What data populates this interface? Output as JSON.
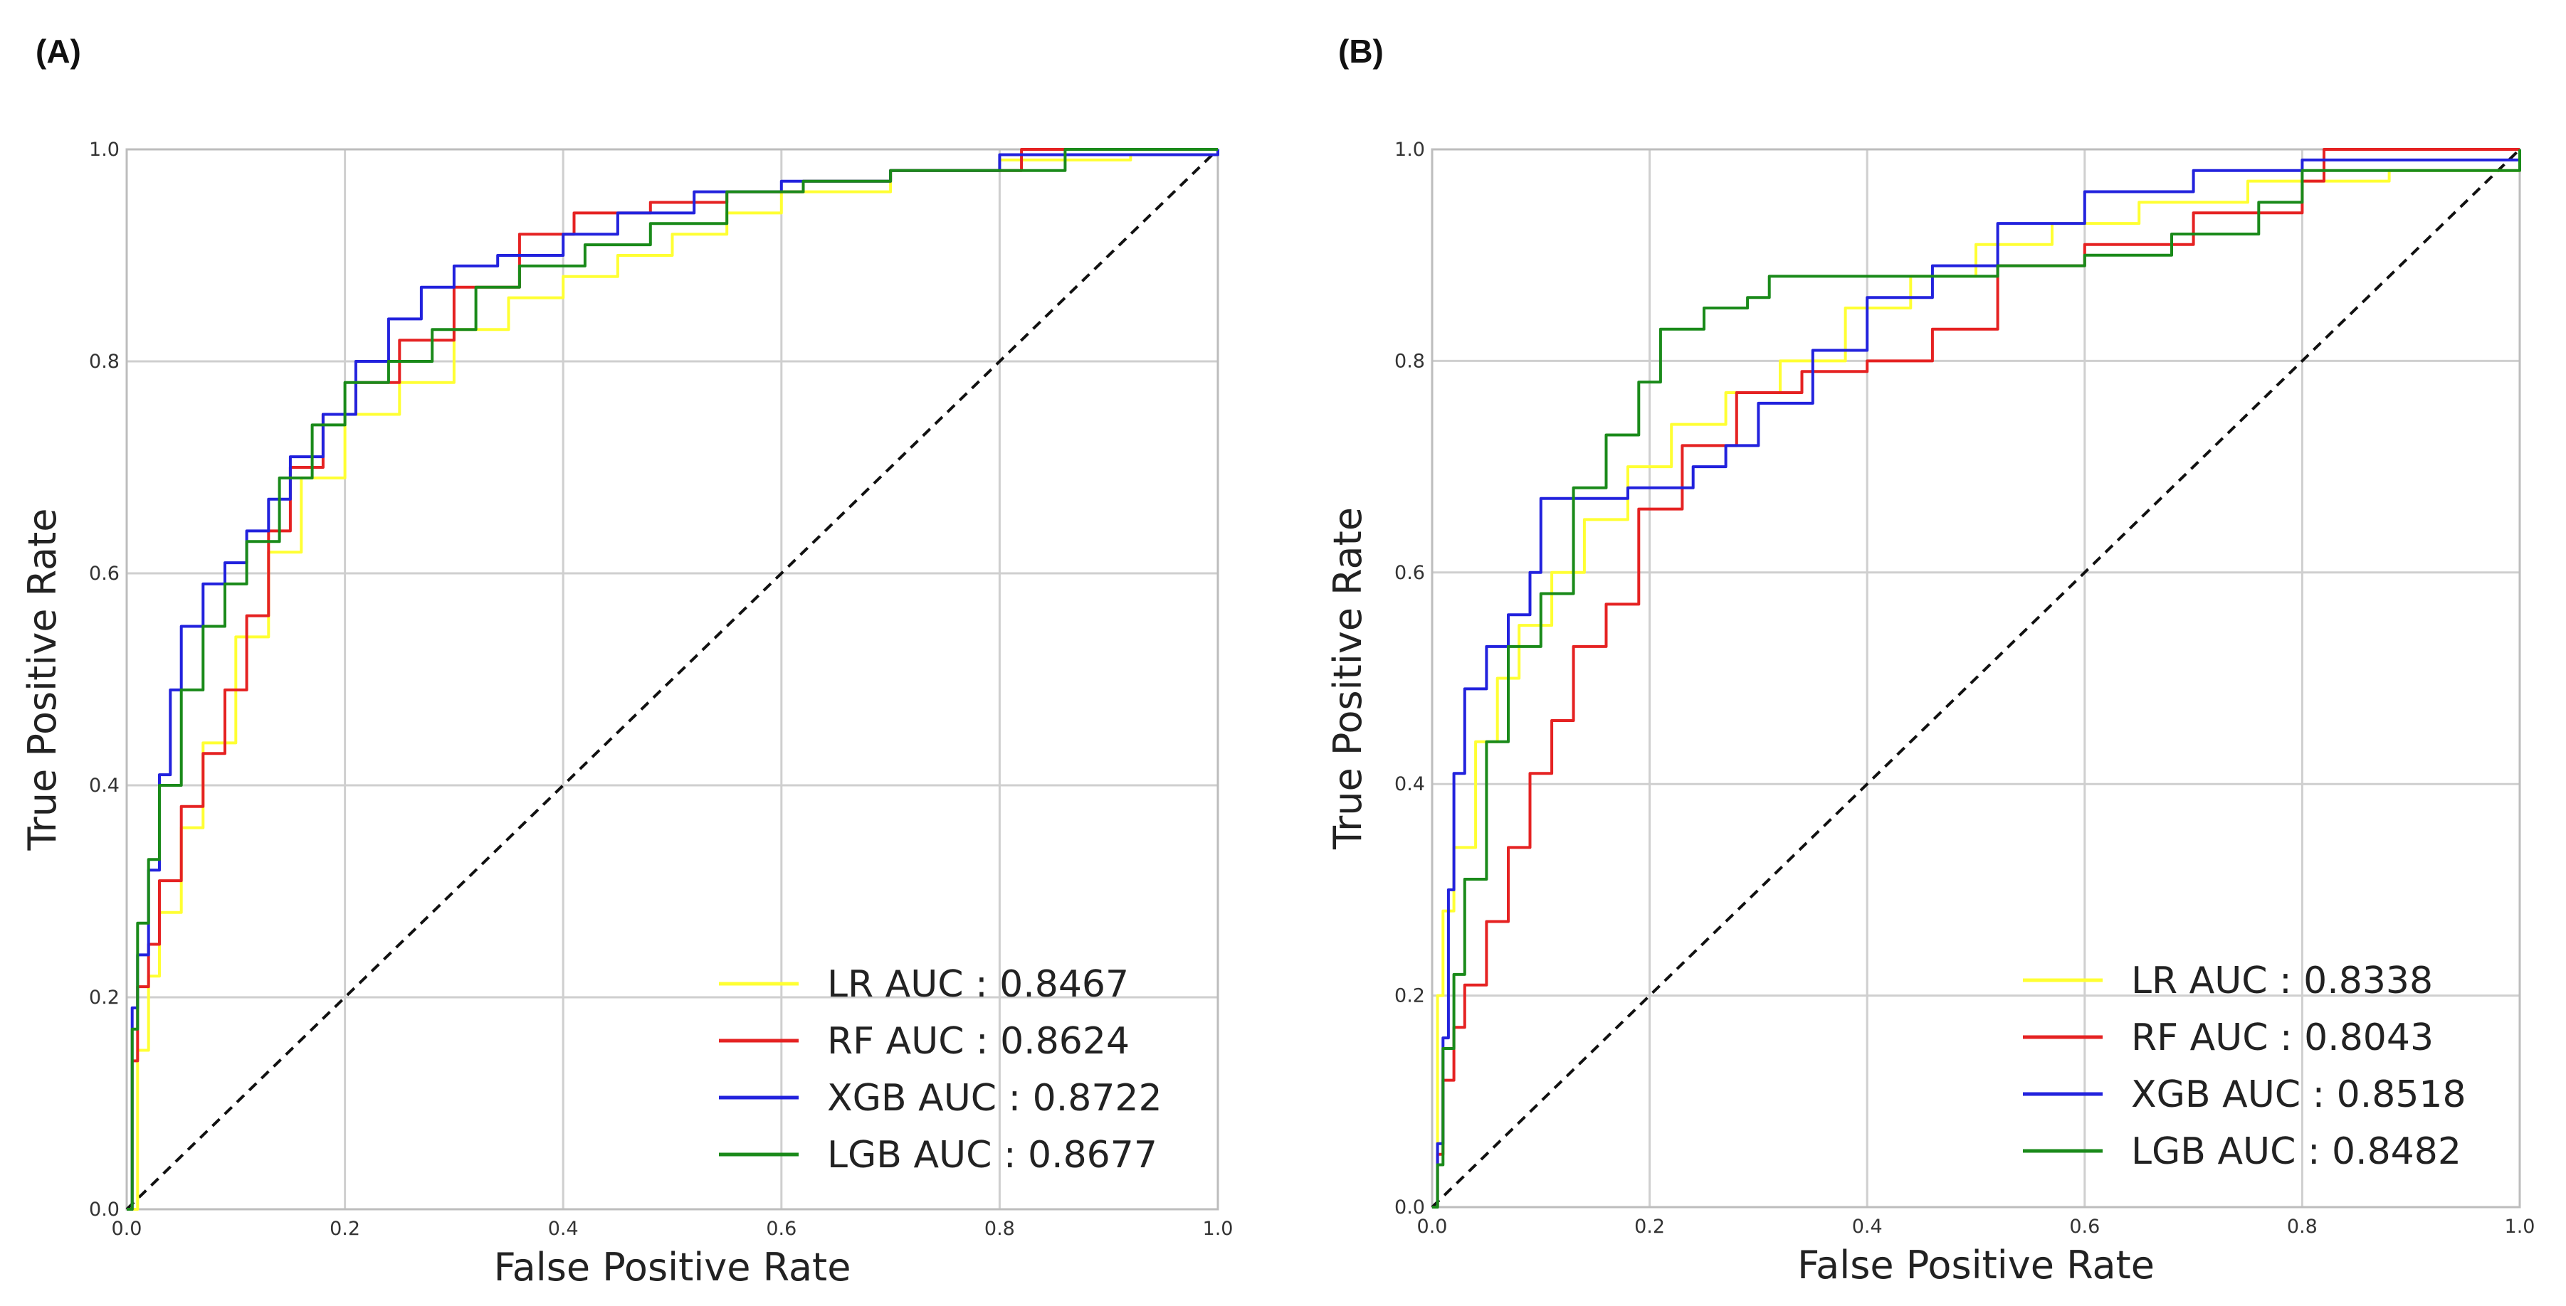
{
  "chart_data": [
    {
      "type": "line",
      "panel_label": "(A)",
      "xlabel": "False Positive Rate",
      "ylabel": "True Positive Rate",
      "xlim": [
        0,
        1
      ],
      "ylim": [
        0,
        1
      ],
      "xticks": [
        "0.0",
        "0.2",
        "0.4",
        "0.6",
        "0.8",
        "1.0"
      ],
      "yticks": [
        "0.0",
        "0.2",
        "0.4",
        "0.6",
        "0.8",
        "1.0"
      ],
      "grid": true,
      "legend_position": "lower-right",
      "diagonal": true,
      "series": [
        {
          "name": "LR",
          "label": "LR AUC : 0.8467",
          "auc": 0.8467,
          "color": "#ffff33",
          "x": [
            0,
            0.01,
            0.02,
            0.03,
            0.05,
            0.07,
            0.1,
            0.13,
            0.16,
            0.2,
            0.25,
            0.3,
            0.35,
            0.4,
            0.45,
            0.5,
            0.55,
            0.6,
            0.7,
            0.8,
            0.92,
            1.0
          ],
          "y": [
            0,
            0.15,
            0.22,
            0.28,
            0.36,
            0.44,
            0.54,
            0.62,
            0.69,
            0.75,
            0.78,
            0.83,
            0.86,
            0.88,
            0.9,
            0.92,
            0.94,
            0.96,
            0.98,
            0.99,
            0.995,
            1.0
          ]
        },
        {
          "name": "RF",
          "label": "RF AUC : 0.8624",
          "auc": 0.8624,
          "color": "#e52222",
          "x": [
            0,
            0.005,
            0.01,
            0.02,
            0.03,
            0.05,
            0.07,
            0.09,
            0.11,
            0.13,
            0.15,
            0.18,
            0.21,
            0.25,
            0.3,
            0.36,
            0.41,
            0.48,
            0.55,
            0.62,
            0.7,
            0.82,
            1.0
          ],
          "y": [
            0,
            0.14,
            0.21,
            0.25,
            0.31,
            0.38,
            0.43,
            0.49,
            0.56,
            0.64,
            0.7,
            0.75,
            0.78,
            0.82,
            0.87,
            0.92,
            0.94,
            0.95,
            0.96,
            0.97,
            0.98,
            1.0,
            1.0
          ]
        },
        {
          "name": "XGB",
          "label": "XGB AUC : 0.8722",
          "auc": 0.8722,
          "color": "#2222dd",
          "x": [
            0,
            0.005,
            0.01,
            0.02,
            0.03,
            0.04,
            0.05,
            0.07,
            0.09,
            0.11,
            0.13,
            0.15,
            0.18,
            0.21,
            0.24,
            0.27,
            0.3,
            0.34,
            0.4,
            0.45,
            0.52,
            0.6,
            0.7,
            0.8,
            1.0
          ],
          "y": [
            0,
            0.19,
            0.24,
            0.32,
            0.41,
            0.49,
            0.55,
            0.59,
            0.61,
            0.64,
            0.67,
            0.71,
            0.75,
            0.8,
            0.84,
            0.87,
            0.89,
            0.9,
            0.92,
            0.94,
            0.96,
            0.97,
            0.98,
            0.995,
            1.0
          ]
        },
        {
          "name": "LGB",
          "label": "LGB AUC : 0.8677",
          "auc": 0.8677,
          "color": "#1a8a1a",
          "x": [
            0,
            0.005,
            0.01,
            0.02,
            0.03,
            0.05,
            0.07,
            0.09,
            0.11,
            0.14,
            0.17,
            0.2,
            0.24,
            0.28,
            0.32,
            0.36,
            0.42,
            0.48,
            0.55,
            0.62,
            0.7,
            0.86,
            1.0
          ],
          "y": [
            0,
            0.17,
            0.27,
            0.33,
            0.4,
            0.49,
            0.55,
            0.59,
            0.63,
            0.69,
            0.74,
            0.78,
            0.8,
            0.83,
            0.87,
            0.89,
            0.91,
            0.93,
            0.96,
            0.97,
            0.98,
            1.0,
            1.0
          ]
        }
      ]
    },
    {
      "type": "line",
      "panel_label": "(B)",
      "xlabel": "False Positive Rate",
      "ylabel": "True Positive Rate",
      "xlim": [
        0,
        1
      ],
      "ylim": [
        0,
        1
      ],
      "xticks": [
        "0.0",
        "0.2",
        "0.4",
        "0.6",
        "0.8",
        "1.0"
      ],
      "yticks": [
        "0.0",
        "0.2",
        "0.4",
        "0.6",
        "0.8",
        "1.0"
      ],
      "grid": true,
      "legend_position": "lower-right",
      "diagonal": true,
      "series": [
        {
          "name": "LR",
          "label": "LR AUC : 0.8338",
          "auc": 0.8338,
          "color": "#ffff33",
          "x": [
            0,
            0.005,
            0.01,
            0.02,
            0.04,
            0.06,
            0.08,
            0.11,
            0.14,
            0.18,
            0.22,
            0.27,
            0.32,
            0.38,
            0.44,
            0.5,
            0.57,
            0.65,
            0.75,
            0.88,
            1.0
          ],
          "y": [
            0,
            0.2,
            0.28,
            0.34,
            0.44,
            0.5,
            0.55,
            0.6,
            0.65,
            0.7,
            0.74,
            0.77,
            0.8,
            0.85,
            0.88,
            0.91,
            0.93,
            0.95,
            0.97,
            0.98,
            1.0
          ]
        },
        {
          "name": "RF",
          "label": "RF AUC : 0.8043",
          "auc": 0.8043,
          "color": "#e52222",
          "x": [
            0,
            0.005,
            0.01,
            0.02,
            0.03,
            0.05,
            0.07,
            0.09,
            0.11,
            0.13,
            0.16,
            0.19,
            0.23,
            0.28,
            0.34,
            0.4,
            0.46,
            0.52,
            0.6,
            0.7,
            0.8,
            0.82,
            1.0
          ],
          "y": [
            0,
            0.05,
            0.12,
            0.17,
            0.21,
            0.27,
            0.34,
            0.41,
            0.46,
            0.53,
            0.57,
            0.66,
            0.72,
            0.77,
            0.79,
            0.8,
            0.83,
            0.89,
            0.91,
            0.94,
            0.97,
            1.0,
            1.0
          ]
        },
        {
          "name": "XGB",
          "label": "XGB AUC : 0.8518",
          "auc": 0.8518,
          "color": "#2222dd",
          "x": [
            0,
            0.005,
            0.01,
            0.015,
            0.02,
            0.03,
            0.05,
            0.07,
            0.09,
            0.1,
            0.14,
            0.18,
            0.21,
            0.24,
            0.27,
            0.3,
            0.35,
            0.4,
            0.46,
            0.52,
            0.6,
            0.7,
            0.8,
            0.97,
            1.0
          ],
          "y": [
            0,
            0.06,
            0.16,
            0.3,
            0.41,
            0.49,
            0.53,
            0.56,
            0.6,
            0.67,
            0.67,
            0.68,
            0.68,
            0.7,
            0.72,
            0.76,
            0.81,
            0.86,
            0.89,
            0.93,
            0.96,
            0.98,
            0.99,
            0.99,
            1.0
          ]
        },
        {
          "name": "LGB",
          "label": "LGB AUC : 0.8482",
          "auc": 0.8482,
          "color": "#1a8a1a",
          "x": [
            0,
            0.005,
            0.01,
            0.02,
            0.03,
            0.05,
            0.07,
            0.1,
            0.13,
            0.16,
            0.19,
            0.21,
            0.25,
            0.29,
            0.31,
            0.36,
            0.44,
            0.52,
            0.6,
            0.68,
            0.76,
            0.8,
            1.0
          ],
          "y": [
            0,
            0.04,
            0.15,
            0.22,
            0.31,
            0.44,
            0.53,
            0.58,
            0.68,
            0.73,
            0.78,
            0.83,
            0.85,
            0.86,
            0.88,
            0.88,
            0.88,
            0.89,
            0.9,
            0.92,
            0.95,
            0.98,
            1.0
          ]
        }
      ]
    }
  ]
}
